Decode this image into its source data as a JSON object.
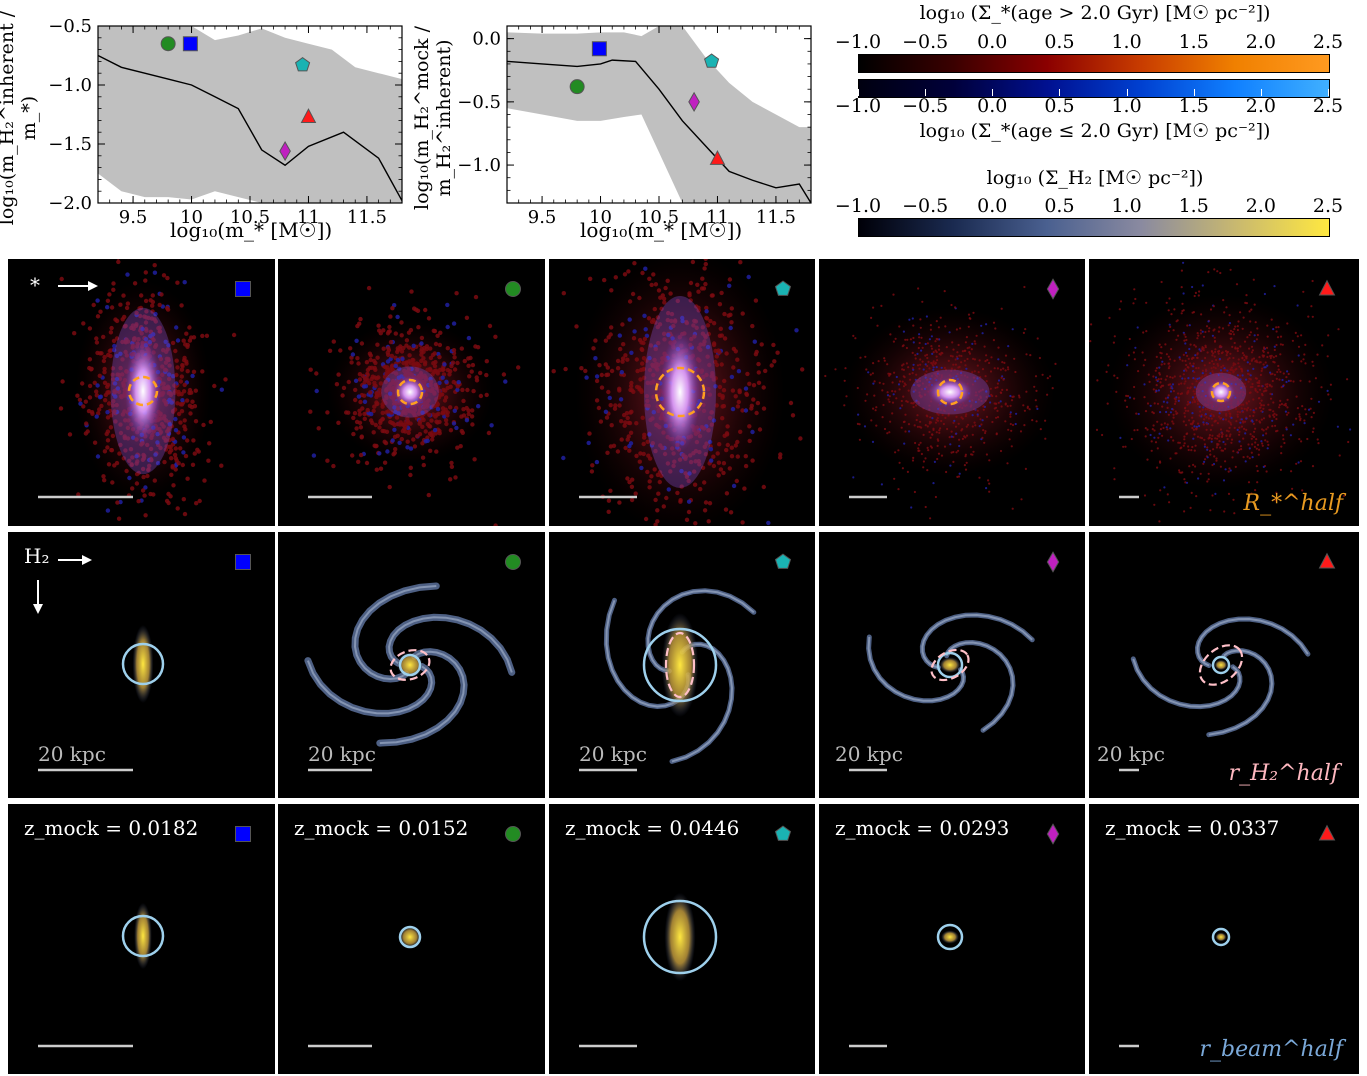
{
  "chart_data": [
    {
      "type": "scatter",
      "title": "",
      "xlabel": "log10(m* [M☉])",
      "ylabel": "log10(m_H2^inherent / m*)",
      "xlim": [
        9.2,
        11.8
      ],
      "ylim": [
        -2.0,
        -0.5
      ],
      "xticks": [
        "9.5",
        "10",
        "10.5",
        "11",
        "11.5"
      ],
      "xtick_values": [
        9.5,
        10,
        10.5,
        11,
        11.5
      ],
      "yticks": [
        "−0.5",
        "−1.0",
        "−1.5",
        "−2.0"
      ],
      "ytick_values": [
        -0.5,
        -1.0,
        -1.5,
        -2.0
      ],
      "median_line": {
        "x": [
          9.2,
          9.4,
          9.6,
          9.8,
          10.0,
          10.2,
          10.4,
          10.6,
          10.8,
          11.0,
          11.3,
          11.6,
          11.8
        ],
        "y": [
          -0.75,
          -0.85,
          -0.9,
          -0.95,
          -1.0,
          -1.1,
          -1.2,
          -1.55,
          -1.68,
          -1.52,
          -1.4,
          -1.62,
          -1.98
        ]
      },
      "band": {
        "x": [
          9.2,
          9.4,
          9.6,
          9.8,
          10.0,
          10.2,
          10.4,
          10.6,
          10.8,
          11.0,
          11.2,
          11.4,
          11.6,
          11.8
        ],
        "upper": [
          -0.5,
          -0.5,
          -0.5,
          -0.5,
          -0.5,
          -0.62,
          -0.58,
          -0.52,
          -0.6,
          -0.65,
          -0.7,
          -0.85,
          -0.9,
          -0.95
        ],
        "lower": [
          -1.75,
          -1.9,
          -1.95,
          -1.95,
          -1.97,
          -1.9,
          -1.95,
          -2.0,
          -2.0,
          -2.0,
          -2.0,
          -2.0,
          -2.0,
          -2.0
        ]
      },
      "points": [
        {
          "marker": "square",
          "color": "#0000ff",
          "x": 9.99,
          "y": -0.65
        },
        {
          "marker": "circle",
          "color": "#228b22",
          "x": 9.8,
          "y": -0.65
        },
        {
          "marker": "pentagon",
          "color": "#1ab3b3",
          "x": 10.95,
          "y": -0.83
        },
        {
          "marker": "diamond",
          "color": "#c020c0",
          "x": 10.8,
          "y": -1.56
        },
        {
          "marker": "triangle",
          "color": "#ff1a1a",
          "x": 11.0,
          "y": -1.27
        }
      ]
    },
    {
      "type": "scatter",
      "title": "",
      "xlabel": "log10(m* [M☉])",
      "ylabel": "log10(m_H2^mock / m_H2^inherent)",
      "xlim": [
        9.2,
        11.8
      ],
      "ylim": [
        -1.3,
        0.1
      ],
      "xticks": [
        "9.5",
        "10",
        "10.5",
        "11",
        "11.5"
      ],
      "xtick_values": [
        9.5,
        10,
        10.5,
        11,
        11.5
      ],
      "yticks": [
        "0.0",
        "−0.5",
        "−1.0"
      ],
      "ytick_values": [
        0.0,
        -0.5,
        -1.0
      ],
      "median_line": {
        "x": [
          9.2,
          9.5,
          9.8,
          10.0,
          10.1,
          10.3,
          10.5,
          10.7,
          10.9,
          11.1,
          11.3,
          11.5,
          11.7,
          11.8
        ],
        "y": [
          -0.18,
          -0.2,
          -0.22,
          -0.2,
          -0.17,
          -0.18,
          -0.4,
          -0.65,
          -0.85,
          -1.05,
          -1.12,
          -1.18,
          -1.15,
          -1.3
        ]
      },
      "band": {
        "x": [
          9.2,
          9.5,
          9.8,
          10.0,
          10.2,
          10.35,
          10.5,
          10.7,
          10.9,
          11.1,
          11.3,
          11.5,
          11.7,
          11.8
        ],
        "upper": [
          0.05,
          0.04,
          0.04,
          0.05,
          0.05,
          0.02,
          0.1,
          0.1,
          -0.15,
          -0.35,
          -0.5,
          -0.6,
          -0.7,
          -0.7
        ],
        "lower": [
          -0.55,
          -0.6,
          -0.65,
          -0.65,
          -0.62,
          -0.6,
          -0.9,
          -1.3,
          -1.3,
          -1.3,
          -1.3,
          -1.3,
          -1.3,
          -1.3
        ]
      },
      "points": [
        {
          "marker": "square",
          "color": "#0000ff",
          "x": 9.99,
          "y": -0.08
        },
        {
          "marker": "circle",
          "color": "#228b22",
          "x": 9.8,
          "y": -0.38
        },
        {
          "marker": "pentagon",
          "color": "#1ab3b3",
          "x": 10.95,
          "y": -0.18
        },
        {
          "marker": "diamond",
          "color": "#c020c0",
          "x": 10.8,
          "y": -0.5
        },
        {
          "marker": "triangle",
          "color": "#ff1a1a",
          "x": 11.0,
          "y": -0.95
        }
      ]
    }
  ],
  "plot1": {
    "ylabel": "log₁₀(m_H₂^inherent / m_*)",
    "xlabel": "log₁₀(m_* [M☉])"
  },
  "plot2": {
    "ylabel": "log₁₀(m_H₂^mock / m_H₂^inherent)",
    "xlabel": "log₁₀(m_* [M☉])"
  },
  "colorbars": {
    "ticks": [
      "−1.0",
      "−0.5",
      "0.0",
      "0.5",
      "1.0",
      "1.5",
      "2.0",
      "2.5"
    ],
    "tick_values": [
      -1.0,
      -0.5,
      0.0,
      0.5,
      1.0,
      1.5,
      2.0,
      2.5
    ],
    "old": {
      "title": "log₁₀ (Σ_*(age > 2.0 Gyr) [M☉ pc⁻²])",
      "colors": [
        "#000000",
        "#3a0000",
        "#8b0000",
        "#c83c00",
        "#f08000",
        "#ff9a20"
      ]
    },
    "young": {
      "title": "log₁₀ (Σ_*(age ≤ 2.0 Gyr) [M☉ pc⁻²])",
      "colors": [
        "#000010",
        "#00003a",
        "#001090",
        "#0040d0",
        "#1080ff",
        "#40b0ff"
      ]
    },
    "h2": {
      "title": "log₁₀ (Σ_H₂ [M☉ pc⁻²])",
      "colors": [
        "#000008",
        "#1a2a50",
        "#4a6090",
        "#8a8aa0",
        "#c8b870",
        "#ffe840"
      ]
    }
  },
  "row1": {
    "label_star": "*",
    "corner_label": "R_*^half"
  },
  "row2": {
    "label_h2": "H₂",
    "scale_label": "20 kpc",
    "corner_label": "r_H₂^half"
  },
  "row3": {
    "z_prefix": "z_mock = ",
    "z_values": [
      "0.0182",
      "0.0152",
      "0.0446",
      "0.0293",
      "0.0337"
    ],
    "corner_label": "r_beam^half"
  },
  "galaxies": [
    {
      "marker": "square",
      "color": "#0000ff"
    },
    {
      "marker": "circle",
      "color": "#228b22"
    },
    {
      "marker": "pentagon",
      "color": "#1ab3b3"
    },
    {
      "marker": "diamond",
      "color": "#c020c0"
    },
    {
      "marker": "triangle",
      "color": "#ff1a1a"
    }
  ]
}
